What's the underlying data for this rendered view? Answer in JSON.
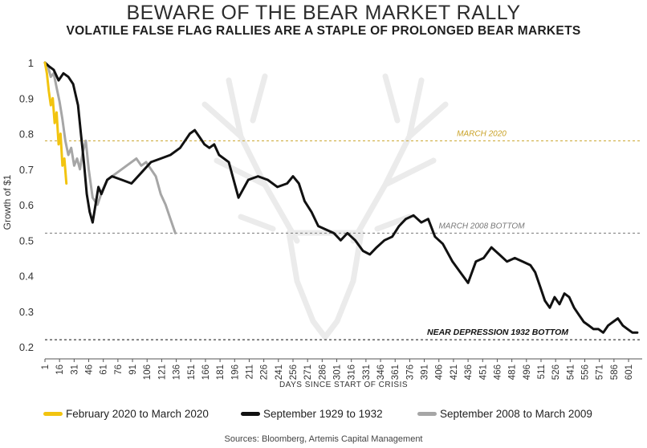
{
  "header": {
    "title": "BEWARE OF THE BEAR MARKET RALLY",
    "subtitle": "VOLATILE FALSE FLAG RALLIES ARE A STAPLE OF PROLONGED BEAR MARKETS"
  },
  "source": "Sources: Bloomberg,  Artemis Capital Management",
  "chart_data": {
    "type": "line",
    "xlabel": "DAYS SINCE START OF CRISIS",
    "ylabel": "Growth of $1",
    "xlim": [
      1,
      615
    ],
    "ylim": [
      0.2,
      1.0
    ],
    "x_ticks": [
      1,
      16,
      31,
      46,
      61,
      76,
      91,
      106,
      121,
      136,
      151,
      166,
      181,
      196,
      211,
      226,
      241,
      256,
      271,
      286,
      301,
      316,
      331,
      346,
      361,
      376,
      391,
      406,
      421,
      436,
      451,
      466,
      481,
      496,
      511,
      526,
      541,
      556,
      571,
      586,
      601
    ],
    "y_ticks": [
      0.2,
      0.3,
      0.4,
      0.5,
      0.6,
      0.7,
      0.8,
      0.9,
      1
    ],
    "y_tick_labels": [
      "0.2",
      "0.3",
      "0.4",
      "0.5",
      "0.6",
      "0.7",
      "0.8",
      "0.9",
      "1"
    ],
    "grid": false,
    "reference_lines": [
      {
        "label": "MARCH 2020",
        "y": 0.78,
        "color": "#c9a227"
      },
      {
        "label": "MARCH 2008 BOTTOM",
        "y": 0.52,
        "color": "#777777"
      },
      {
        "label": "NEAR DEPRESSION 1932 BOTTOM",
        "y": 0.22,
        "color": "#111111"
      }
    ],
    "series": [
      {
        "name": "September 2008 to March 2009",
        "color": "#a6a6a6",
        "x": [
          1,
          4,
          7,
          10,
          13,
          16,
          19,
          22,
          25,
          28,
          31,
          34,
          37,
          40,
          43,
          46,
          50,
          55,
          60,
          65,
          70,
          75,
          80,
          85,
          90,
          95,
          100,
          105,
          110,
          115,
          120,
          125,
          130,
          135
        ],
        "y": [
          1.0,
          0.99,
          0.96,
          0.97,
          0.93,
          0.89,
          0.84,
          0.78,
          0.74,
          0.76,
          0.71,
          0.73,
          0.7,
          0.75,
          0.78,
          0.7,
          0.62,
          0.6,
          0.64,
          0.67,
          0.68,
          0.69,
          0.7,
          0.71,
          0.72,
          0.73,
          0.71,
          0.72,
          0.7,
          0.68,
          0.63,
          0.6,
          0.56,
          0.52
        ]
      },
      {
        "name": "September 1929 to 1932",
        "color": "#111111",
        "x": [
          1,
          5,
          10,
          15,
          20,
          25,
          30,
          35,
          38,
          41,
          44,
          47,
          50,
          53,
          56,
          59,
          65,
          70,
          80,
          90,
          100,
          110,
          120,
          130,
          140,
          145,
          150,
          155,
          160,
          165,
          170,
          175,
          180,
          190,
          200,
          210,
          220,
          230,
          240,
          250,
          256,
          262,
          268,
          275,
          282,
          290,
          298,
          305,
          312,
          320,
          328,
          335,
          342,
          350,
          358,
          365,
          372,
          380,
          388,
          395,
          402,
          410,
          420,
          428,
          436,
          444,
          452,
          460,
          468,
          476,
          484,
          492,
          500,
          505,
          510,
          515,
          520,
          525,
          530,
          535,
          540,
          545,
          550,
          555,
          560,
          565,
          570,
          575,
          580,
          585,
          590,
          595,
          600,
          605,
          610
        ],
        "y": [
          1.0,
          0.99,
          0.98,
          0.95,
          0.97,
          0.96,
          0.94,
          0.88,
          0.8,
          0.72,
          0.63,
          0.58,
          0.55,
          0.6,
          0.65,
          0.63,
          0.67,
          0.68,
          0.67,
          0.66,
          0.69,
          0.72,
          0.73,
          0.74,
          0.76,
          0.78,
          0.8,
          0.81,
          0.79,
          0.77,
          0.76,
          0.77,
          0.74,
          0.72,
          0.62,
          0.67,
          0.68,
          0.67,
          0.65,
          0.66,
          0.68,
          0.66,
          0.61,
          0.58,
          0.54,
          0.53,
          0.52,
          0.5,
          0.52,
          0.5,
          0.47,
          0.46,
          0.48,
          0.5,
          0.51,
          0.54,
          0.56,
          0.57,
          0.55,
          0.56,
          0.51,
          0.49,
          0.44,
          0.41,
          0.38,
          0.44,
          0.45,
          0.48,
          0.46,
          0.44,
          0.45,
          0.44,
          0.43,
          0.41,
          0.37,
          0.33,
          0.31,
          0.34,
          0.32,
          0.35,
          0.34,
          0.31,
          0.29,
          0.27,
          0.26,
          0.25,
          0.25,
          0.24,
          0.26,
          0.27,
          0.28,
          0.26,
          0.25,
          0.24,
          0.24
        ]
      },
      {
        "name": "February 2020 to March 2020",
        "color": "#f2c40f",
        "x": [
          1,
          3,
          5,
          7,
          9,
          11,
          13,
          15,
          17,
          19,
          21,
          23
        ],
        "y": [
          1.0,
          0.97,
          0.92,
          0.88,
          0.9,
          0.83,
          0.86,
          0.77,
          0.8,
          0.71,
          0.73,
          0.66
        ]
      }
    ],
    "legend": {
      "position": "bottom",
      "entries": [
        {
          "label": "February 2020 to March 2020",
          "color": "#f2c40f"
        },
        {
          "label": "September 1929 to 1932",
          "color": "#111111"
        },
        {
          "label": "September 2008 to March 2009",
          "color": "#a6a6a6"
        }
      ]
    }
  }
}
